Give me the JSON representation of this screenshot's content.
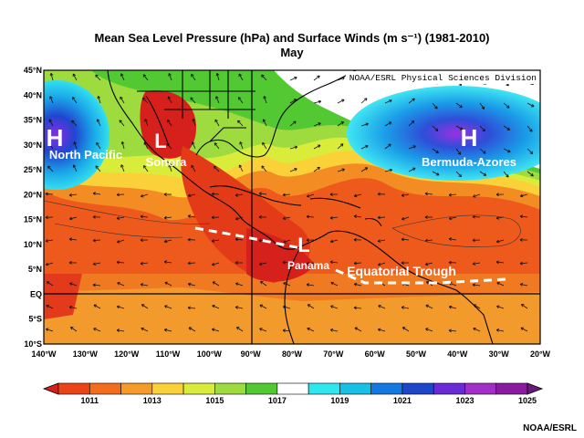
{
  "title": "Mean Sea Level Pressure (hPa) and Surface Winds (m s⁻¹) (1981-2010)",
  "subtitle": "May",
  "source": "NOAA/ESRL Physical Sciences Division",
  "credit": "NOAA/ESRL",
  "lat_labels": [
    "45°N",
    "40°N",
    "35°N",
    "30°N",
    "25°N",
    "20°N",
    "15°N",
    "10°N",
    "5°N",
    "EQ",
    "5°S",
    "10°S"
  ],
  "lon_labels": [
    "140°W",
    "130°W",
    "120°W",
    "110°W",
    "100°W",
    "90°W",
    "80°W",
    "70°W",
    "60°W",
    "50°W",
    "40°W",
    "30°W",
    "20°W"
  ],
  "labels": {
    "h_north_pacific": "H",
    "north_pacific": "North Pacific",
    "l_sonora": "L",
    "sonora": "Sonora",
    "h_bermuda": "H",
    "bermuda": "Bermuda-Azores",
    "l_panama": "L",
    "panama": "Panama",
    "trough": "Equatorial Trough"
  },
  "colorbar": {
    "labels": [
      "1011",
      "1013",
      "1015",
      "1017",
      "1019",
      "1021",
      "1023",
      "1025"
    ],
    "colors": [
      "#d5201c",
      "#ea4418",
      "#f26d1c",
      "#f69b2a",
      "#fbd13a",
      "#d9ec3a",
      "#9edb3e",
      "#52c832",
      "#ffffff",
      "#2ee8f0",
      "#19c0e6",
      "#1478e0",
      "#1e46c8",
      "#6a2ad6",
      "#a22ec8",
      "#8a1aa0",
      "#6a1880"
    ]
  }
}
